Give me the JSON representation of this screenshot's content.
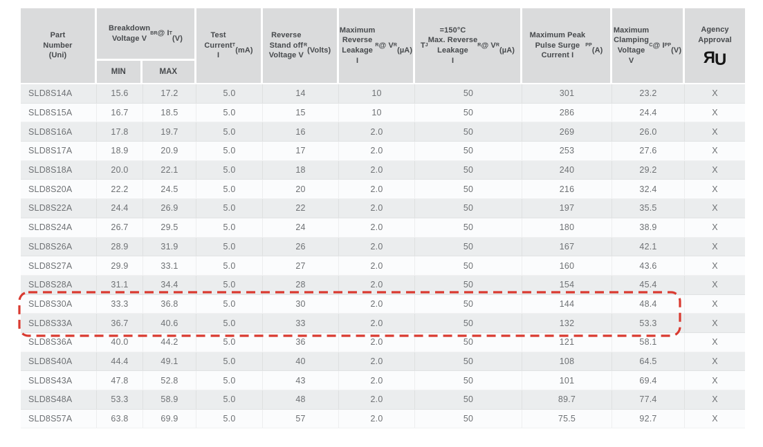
{
  "colors": {
    "page_bg": "#ffffff",
    "header_bg": "#dadbdc",
    "row_alt_bg": "#ebedee",
    "row_base_bg": "#fbfcfd",
    "header_text": "#46494c",
    "body_text": "#6e7174",
    "highlight": "#d93a30",
    "ul_mark": "#161616"
  },
  "table": {
    "columns": [
      {
        "id": "part_number",
        "label": "Part\nNumber\n(Uni)"
      },
      {
        "id": "breakdown_voltage",
        "label": "Breakdown\nVoltage V~BR~ @ I~T~\n(V)",
        "subcolumns": [
          "MIN",
          "MAX"
        ]
      },
      {
        "id": "test_current",
        "label": "Test\nCurrent\nI~T~\n(mA)"
      },
      {
        "id": "reverse_standoff_voltage",
        "label": "Reverse\nStand off\nVoltage V~R~\n(Volts)"
      },
      {
        "id": "max_reverse_leakage",
        "label": "Maximum\nReverse\nLeakage\nI~R~ @ V~R~\n(µA)"
      },
      {
        "id": "tj150_max_reverse_leakage",
        "label": "T~J~=150°C\nMax. Reverse\nLeakage\nI~R~ @ V~R~\n(µA)"
      },
      {
        "id": "max_peak_pulse_surge_current",
        "label": "Maximum Peak\nPulse Surge\nCurrent I~PP~\n(A)"
      },
      {
        "id": "max_clamping_voltage",
        "label": "Maximum\nClamping\nVoltage\nV~C~ @ I~PP~\n(V)"
      },
      {
        "id": "agency_approval",
        "label": "Agency\nApproval",
        "icon": "ul-recognized-mark"
      }
    ],
    "rows": [
      [
        "SLD8S14A",
        "15.6",
        "17.2",
        "5.0",
        "14",
        "10",
        "50",
        "301",
        "23.2",
        "X"
      ],
      [
        "SLD8S15A",
        "16.7",
        "18.5",
        "5.0",
        "15",
        "10",
        "50",
        "286",
        "24.4",
        "X"
      ],
      [
        "SLD8S16A",
        "17.8",
        "19.7",
        "5.0",
        "16",
        "2.0",
        "50",
        "269",
        "26.0",
        "X"
      ],
      [
        "SLD8S17A",
        "18.9",
        "20.9",
        "5.0",
        "17",
        "2.0",
        "50",
        "253",
        "27.6",
        "X"
      ],
      [
        "SLD8S18A",
        "20.0",
        "22.1",
        "5.0",
        "18",
        "2.0",
        "50",
        "240",
        "29.2",
        "X"
      ],
      [
        "SLD8S20A",
        "22.2",
        "24.5",
        "5.0",
        "20",
        "2.0",
        "50",
        "216",
        "32.4",
        "X"
      ],
      [
        "SLD8S22A",
        "24.4",
        "26.9",
        "5.0",
        "22",
        "2.0",
        "50",
        "197",
        "35.5",
        "X"
      ],
      [
        "SLD8S24A",
        "26.7",
        "29.5",
        "5.0",
        "24",
        "2.0",
        "50",
        "180",
        "38.9",
        "X"
      ],
      [
        "SLD8S26A",
        "28.9",
        "31.9",
        "5.0",
        "26",
        "2.0",
        "50",
        "167",
        "42.1",
        "X"
      ],
      [
        "SLD8S27A",
        "29.9",
        "33.1",
        "5.0",
        "27",
        "2.0",
        "50",
        "160",
        "43.6",
        "X"
      ],
      [
        "SLD8S28A",
        "31.1",
        "34.4",
        "5.0",
        "28",
        "2.0",
        "50",
        "154",
        "45.4",
        "X"
      ],
      [
        "SLD8S30A",
        "33.3",
        "36.8",
        "5.0",
        "30",
        "2.0",
        "50",
        "144",
        "48.4",
        "X"
      ],
      [
        "SLD8S33A",
        "36.7",
        "40.6",
        "5.0",
        "33",
        "2.0",
        "50",
        "132",
        "53.3",
        "X"
      ],
      [
        "SLD8S36A",
        "40.0",
        "44.2",
        "5.0",
        "36",
        "2.0",
        "50",
        "121",
        "58.1",
        "X"
      ],
      [
        "SLD8S40A",
        "44.4",
        "49.1",
        "5.0",
        "40",
        "2.0",
        "50",
        "108",
        "64.5",
        "X"
      ],
      [
        "SLD8S43A",
        "47.8",
        "52.8",
        "5.0",
        "43",
        "2.0",
        "50",
        "101",
        "69.4",
        "X"
      ],
      [
        "SLD8S48A",
        "53.3",
        "58.9",
        "5.0",
        "48",
        "2.0",
        "50",
        "89.7",
        "77.4",
        "X"
      ],
      [
        "SLD8S57A",
        "63.8",
        "69.9",
        "5.0",
        "57",
        "2.0",
        "50",
        "75.5",
        "92.7",
        "X"
      ]
    ],
    "highlight": {
      "row_ids": [
        "SLD8S30A",
        "SLD8S33A"
      ],
      "shape": "dashed-rounded-rect",
      "color": "#d93a30"
    }
  }
}
